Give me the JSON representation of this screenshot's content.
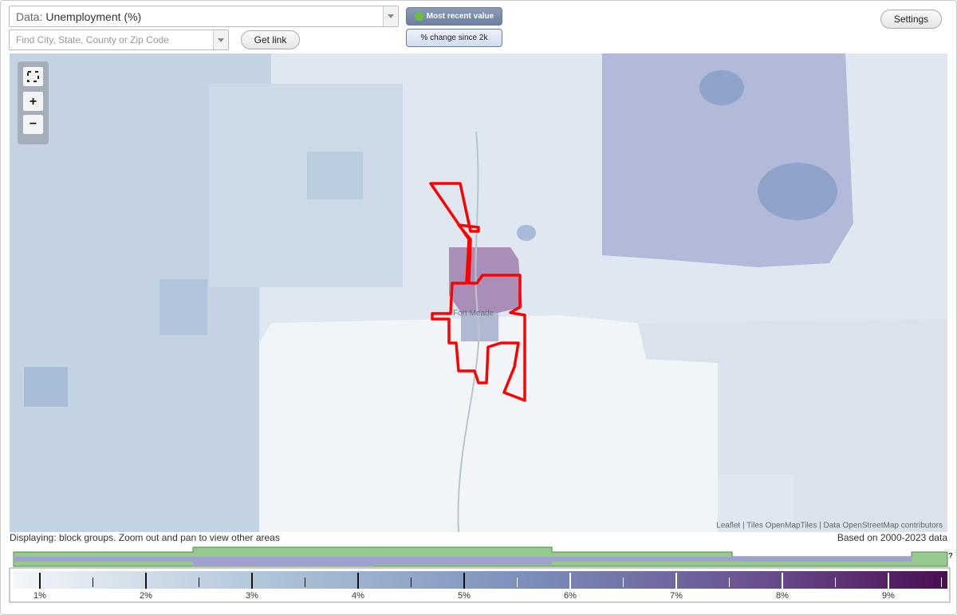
{
  "controls": {
    "data_label": "Data:",
    "data_value": "Unemployment (%)",
    "search_placeholder": "Find City, State, County or Zip Code",
    "get_link": "Get link",
    "most_recent": "Most recent value",
    "percent_change": "% change since 2k",
    "settings": "Settings",
    "zoom_in": "+",
    "zoom_out": "−"
  },
  "map": {
    "place_label": "Fort Meade",
    "attribution": "Leaflet | Tiles OpenMapTiles | Data OpenStreetMap contributors"
  },
  "status": {
    "displaying": "Displaying: block groups. Zoom out and pan to view other areas",
    "based_on": "Based on 2000-2023 data",
    "help": "?"
  },
  "legend": {
    "ticks": [
      "1%",
      "2%",
      "3%",
      "4%",
      "5%",
      "6%",
      "7%",
      "8%",
      "9%"
    ]
  }
}
